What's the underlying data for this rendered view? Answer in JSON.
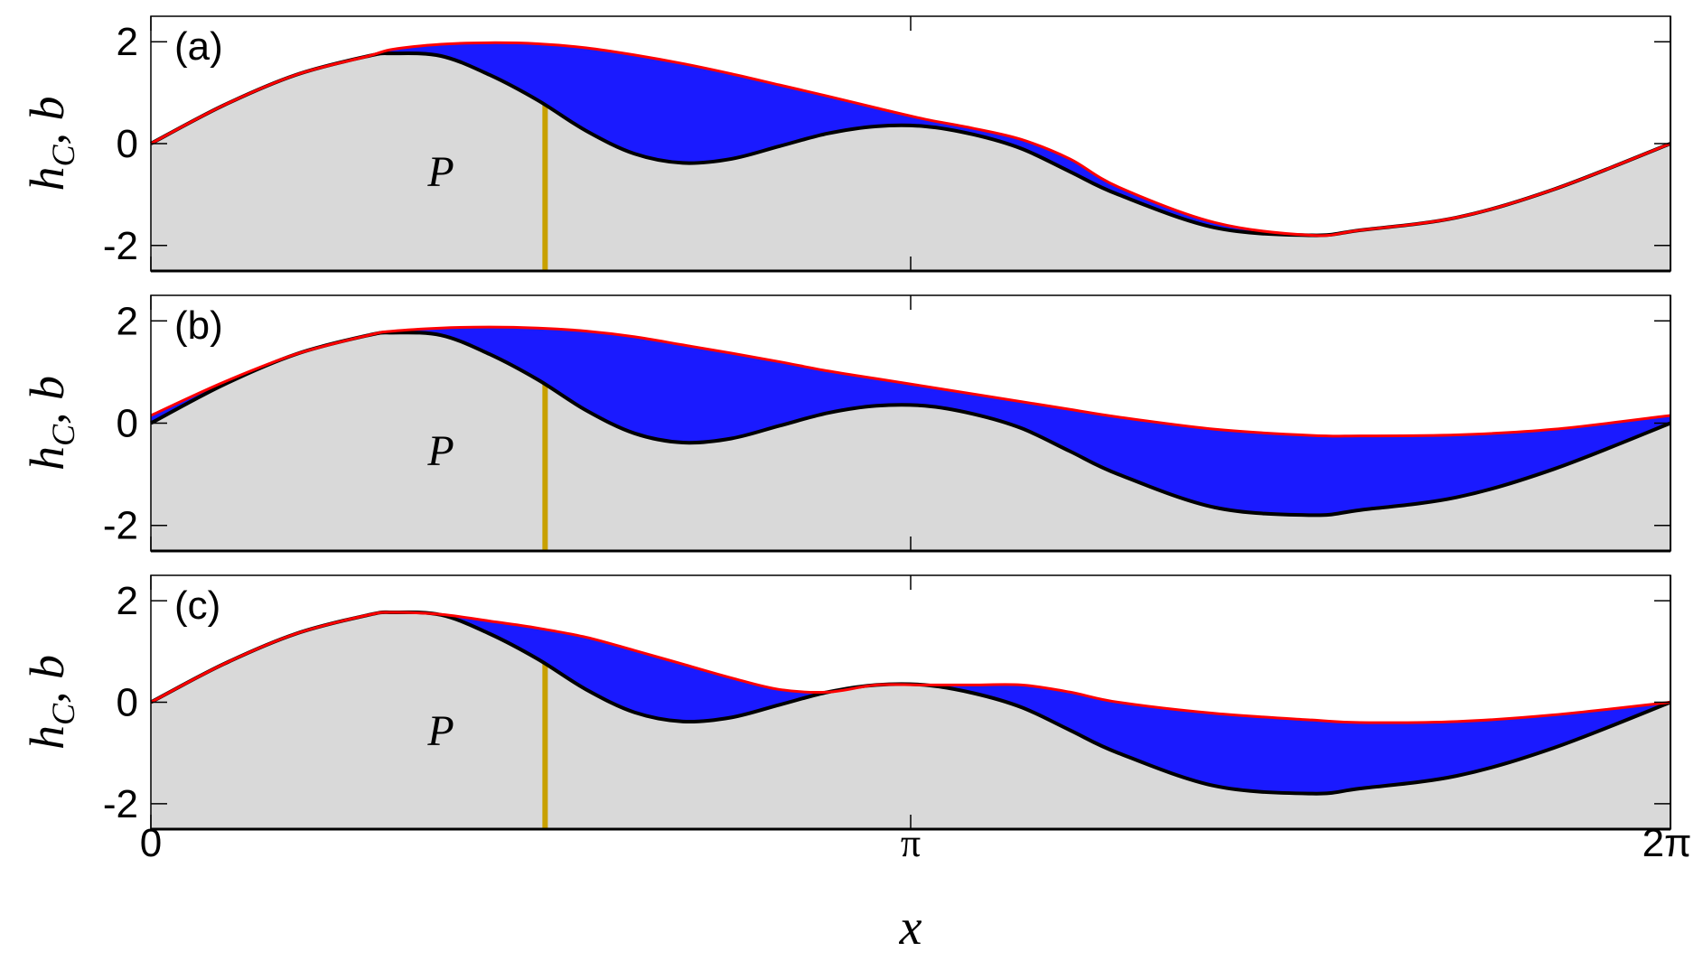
{
  "figure": {
    "xlabel": "x",
    "ylabel_main": "h",
    "ylabel_sub": "C",
    "ylabel_rest": ", b",
    "region_label": "P",
    "xtick_labels": [
      "0",
      "π",
      "2π"
    ],
    "ytick_labels": [
      "2",
      "0",
      "-2"
    ],
    "colors": {
      "fill_bed": "#d9d9d9",
      "fill_water": "#1a1aff",
      "bed_line": "#000000",
      "surface_line": "#ff0000",
      "marker_line": "#c8a000"
    }
  },
  "chart_data": [
    {
      "type": "area",
      "panel_label": "(a)",
      "xlim": [
        0,
        6.2832
      ],
      "ylim": [
        -2.5,
        2.5
      ],
      "yticks": [
        -2,
        0,
        2
      ],
      "xticks": [
        0,
        3.1416,
        6.2832
      ],
      "marker_x": 1.63,
      "x": [
        0.0,
        0.3,
        0.6,
        0.9,
        1.0,
        1.2,
        1.4,
        1.6,
        1.8,
        2.0,
        2.2,
        2.4,
        2.6,
        2.8,
        3.0,
        3.2,
        3.4,
        3.6,
        3.8,
        4.0,
        4.4,
        4.8,
        5.0,
        5.4,
        5.8,
        6.2832
      ],
      "series": [
        {
          "role": "bed",
          "values": [
            0.0,
            0.75,
            1.35,
            1.72,
            1.77,
            1.72,
            1.35,
            0.85,
            0.25,
            -0.2,
            -0.38,
            -0.3,
            -0.05,
            0.2,
            0.34,
            0.34,
            0.18,
            -0.1,
            -0.55,
            -1.0,
            -1.65,
            -1.8,
            -1.7,
            -1.45,
            -0.9,
            0.0
          ]
        },
        {
          "role": "surface",
          "values": [
            0.0,
            0.75,
            1.35,
            1.72,
            1.85,
            1.95,
            1.98,
            1.96,
            1.88,
            1.74,
            1.57,
            1.37,
            1.15,
            0.93,
            0.7,
            0.48,
            0.3,
            0.08,
            -0.3,
            -0.85,
            -1.55,
            -1.8,
            -1.7,
            -1.45,
            -0.9,
            0.0
          ]
        }
      ]
    },
    {
      "type": "area",
      "panel_label": "(b)",
      "xlim": [
        0,
        6.2832
      ],
      "ylim": [
        -2.5,
        2.5
      ],
      "yticks": [
        -2,
        0,
        2
      ],
      "xticks": [
        0,
        3.1416,
        6.2832
      ],
      "marker_x": 1.63,
      "x": [
        0.0,
        0.3,
        0.6,
        0.9,
        1.0,
        1.2,
        1.4,
        1.6,
        1.8,
        2.0,
        2.2,
        2.4,
        2.6,
        2.8,
        3.0,
        3.2,
        3.4,
        3.6,
        3.8,
        4.0,
        4.4,
        4.8,
        5.0,
        5.4,
        5.8,
        6.2832
      ],
      "series": [
        {
          "role": "bed",
          "values": [
            0.0,
            0.75,
            1.35,
            1.72,
            1.77,
            1.72,
            1.35,
            0.85,
            0.25,
            -0.2,
            -0.38,
            -0.3,
            -0.05,
            0.2,
            0.34,
            0.34,
            0.18,
            -0.1,
            -0.55,
            -1.0,
            -1.65,
            -1.8,
            -1.7,
            -1.45,
            -0.9,
            0.0
          ]
        },
        {
          "role": "surface",
          "values": [
            0.15,
            0.8,
            1.35,
            1.72,
            1.8,
            1.86,
            1.88,
            1.86,
            1.8,
            1.69,
            1.53,
            1.37,
            1.2,
            1.02,
            0.87,
            0.72,
            0.57,
            0.42,
            0.27,
            0.12,
            -0.12,
            -0.24,
            -0.25,
            -0.23,
            -0.12,
            0.15
          ]
        }
      ]
    },
    {
      "type": "area",
      "panel_label": "(c)",
      "xlim": [
        0,
        6.2832
      ],
      "ylim": [
        -2.5,
        2.5
      ],
      "yticks": [
        -2,
        0,
        2
      ],
      "xticks": [
        0,
        3.1416,
        6.2832
      ],
      "marker_x": 1.63,
      "x": [
        0.0,
        0.3,
        0.6,
        0.9,
        1.0,
        1.2,
        1.4,
        1.6,
        1.8,
        2.0,
        2.2,
        2.4,
        2.6,
        2.8,
        3.0,
        3.2,
        3.4,
        3.6,
        3.8,
        4.0,
        4.4,
        4.8,
        5.0,
        5.4,
        5.8,
        6.2832
      ],
      "series": [
        {
          "role": "bed",
          "values": [
            0.0,
            0.75,
            1.35,
            1.72,
            1.77,
            1.72,
            1.35,
            0.85,
            0.25,
            -0.2,
            -0.38,
            -0.3,
            -0.05,
            0.2,
            0.34,
            0.34,
            0.18,
            -0.1,
            -0.55,
            -1.0,
            -1.65,
            -1.8,
            -1.7,
            -1.45,
            -0.9,
            0.0
          ]
        },
        {
          "role": "surface",
          "values": [
            0.0,
            0.75,
            1.35,
            1.72,
            1.77,
            1.73,
            1.6,
            1.46,
            1.28,
            1.02,
            0.75,
            0.48,
            0.25,
            0.12,
            0.1,
            0.25,
            0.34,
            0.34,
            0.2,
            0.0,
            -0.22,
            -0.35,
            -0.4,
            -0.38,
            -0.25,
            0.0
          ]
        }
      ]
    }
  ]
}
